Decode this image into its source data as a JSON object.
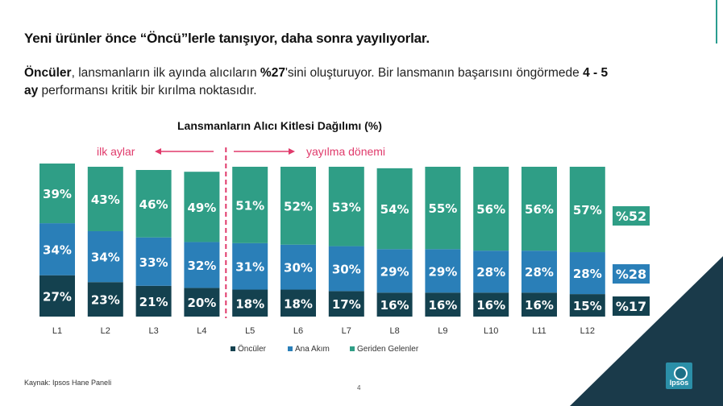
{
  "headline": "Yeni ürünler önce “Öncü”lerle tanışıyor, daha sonra yayılıyorlar.",
  "subtext": {
    "part1_bold": "Öncüler",
    "part2": ", lansmanların ilk ayında alıcıların ",
    "part3_bold": "%27",
    "part4": "'sini oluşturuyor. Bir lansmanın başarısını öngörmede ",
    "part5_bold": "4 - 5 ay",
    "part6": " performansı kritik bir kırılma noktasıdır."
  },
  "phase_labels": {
    "early": "ilk aylar",
    "spread": "yayılma dönemi"
  },
  "summary_badges": [
    "%52",
    "%28",
    "%17"
  ],
  "colors": {
    "oncular": "#14414f",
    "ana_akim": "#2a7fb8",
    "geriden": "#2f9e86",
    "accent_pink": "#e03a6b",
    "deco_dark": "#1a3a4a"
  },
  "chart_data": {
    "type": "bar",
    "stacked": true,
    "normalized": true,
    "title": "Lansmanların Alıcı Kitlesi Dağılımı (%)",
    "categories": [
      "L1",
      "L2",
      "L3",
      "L4",
      "L5",
      "L6",
      "L7",
      "L8",
      "L9",
      "L10",
      "L11",
      "L12"
    ],
    "series": [
      {
        "name": "Öncüler",
        "values": [
          27,
          23,
          21,
          20,
          18,
          18,
          17,
          16,
          16,
          16,
          16,
          15
        ]
      },
      {
        "name": "Ana Akım",
        "values": [
          34,
          34,
          33,
          32,
          31,
          30,
          30,
          29,
          29,
          28,
          28,
          28
        ]
      },
      {
        "name": "Geriden Gelenler",
        "values": [
          39,
          43,
          46,
          49,
          51,
          52,
          53,
          54,
          55,
          56,
          56,
          57
        ]
      }
    ],
    "value_suffix": "%",
    "legend_position": "bottom",
    "grid": false
  },
  "footer": {
    "source": "Kaynak: Ipsos Hane Paneli",
    "page_number": "4",
    "logo_text": "Ipsos"
  }
}
